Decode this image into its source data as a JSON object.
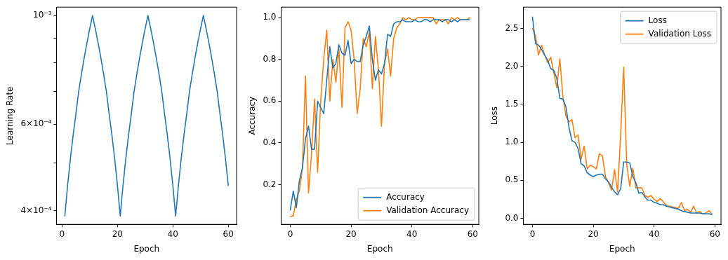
{
  "chart_data": [
    {
      "type": "line",
      "xlabel": "Epoch",
      "ylabel": "Learning Rate",
      "log": "y",
      "grid": false,
      "legend": false,
      "x": [
        1,
        2,
        3,
        4,
        5,
        6,
        7,
        8,
        9,
        10,
        11,
        12,
        13,
        14,
        15,
        16,
        17,
        18,
        19,
        20,
        21,
        22,
        23,
        24,
        25,
        26,
        27,
        28,
        29,
        30,
        31,
        32,
        33,
        34,
        35,
        36,
        37,
        38,
        39,
        40,
        41,
        42,
        43,
        44,
        45,
        46,
        47,
        48,
        49,
        50,
        51,
        52,
        53,
        54,
        55,
        56,
        57,
        58,
        59,
        60
      ],
      "series": [
        {
          "color": "#1f77b4",
          "values": [
            0.00039,
            0.00045,
            0.00051,
            0.00057,
            0.00063,
            0.0007,
            0.00076,
            0.00082,
            0.00088,
            0.00094,
            0.001,
            0.00094,
            0.00088,
            0.00082,
            0.00076,
            0.0007,
            0.00063,
            0.00057,
            0.00051,
            0.00045,
            0.00039,
            0.00045,
            0.00051,
            0.00057,
            0.00063,
            0.0007,
            0.00076,
            0.00082,
            0.00088,
            0.00094,
            0.001,
            0.00094,
            0.00088,
            0.00082,
            0.00076,
            0.0007,
            0.00063,
            0.00057,
            0.00051,
            0.00045,
            0.00039,
            0.00045,
            0.00051,
            0.00057,
            0.00063,
            0.0007,
            0.00076,
            0.00082,
            0.00088,
            0.00094,
            0.001,
            0.00094,
            0.00088,
            0.00082,
            0.00076,
            0.0007,
            0.00063,
            0.00057,
            0.00051,
            0.00045
          ]
        }
      ],
      "xlim": [
        -2,
        63
      ],
      "xticks": [
        0,
        20,
        40,
        60
      ],
      "ylim": [
        0.000375,
        0.00104
      ],
      "yticks": [
        {
          "value": 0.0004,
          "label": "4×10⁻⁴"
        },
        {
          "value": 0.0005,
          "label": null
        },
        {
          "value": 0.0006,
          "label": "6×10⁻⁴"
        },
        {
          "value": 0.0007,
          "label": null
        },
        {
          "value": 0.0008,
          "label": null
        },
        {
          "value": 0.0009,
          "label": null
        },
        {
          "value": 0.001,
          "label": "10⁻³"
        }
      ]
    },
    {
      "type": "line",
      "xlabel": "Epoch",
      "ylabel": "Accuracy",
      "grid": false,
      "legend": "bottom right",
      "x": [
        0,
        1,
        2,
        3,
        4,
        5,
        6,
        7,
        8,
        9,
        10,
        11,
        12,
        13,
        14,
        15,
        16,
        17,
        18,
        19,
        20,
        21,
        22,
        23,
        24,
        25,
        26,
        27,
        28,
        29,
        30,
        31,
        32,
        33,
        34,
        35,
        36,
        37,
        38,
        39,
        40,
        41,
        42,
        43,
        44,
        45,
        46,
        47,
        48,
        49,
        50,
        51,
        52,
        53,
        54,
        55,
        56,
        57,
        58,
        59
      ],
      "series": [
        {
          "name": "Accuracy",
          "color": "#1f77b4",
          "values": [
            0.08,
            0.17,
            0.09,
            0.22,
            0.28,
            0.42,
            0.48,
            0.37,
            0.37,
            0.6,
            0.57,
            0.54,
            0.7,
            0.86,
            0.76,
            0.78,
            0.87,
            0.83,
            0.82,
            0.89,
            0.78,
            0.8,
            0.79,
            0.79,
            0.87,
            0.91,
            0.96,
            0.8,
            0.7,
            0.75,
            0.73,
            0.78,
            0.92,
            0.91,
            0.97,
            0.98,
            0.98,
            0.99,
            0.98,
            0.98,
            0.98,
            0.99,
            0.98,
            0.98,
            0.99,
            0.99,
            0.98,
            0.99,
            0.99,
            0.99,
            0.98,
            0.99,
            0.99,
            0.98,
            0.99,
            0.98,
            0.99,
            0.99,
            0.99,
            0.99
          ]
        },
        {
          "name": "Validation Accuracy",
          "color": "#ff7f0e",
          "values": [
            0.05,
            0.05,
            0.13,
            0.17,
            0.28,
            0.72,
            0.16,
            0.35,
            0.61,
            0.26,
            0.6,
            0.8,
            0.94,
            0.6,
            0.8,
            0.69,
            0.85,
            0.57,
            0.95,
            0.98,
            0.94,
            0.8,
            0.54,
            0.66,
            0.9,
            0.86,
            0.93,
            0.66,
            0.91,
            0.75,
            0.48,
            0.78,
            0.85,
            0.72,
            0.9,
            0.95,
            0.97,
            1.0,
            0.99,
            1.0,
            0.99,
            0.99,
            1.0,
            1.0,
            1.0,
            1.0,
            1.0,
            1.0,
            0.97,
            0.99,
            0.99,
            0.99,
            0.97,
            1.0,
            0.99,
            1.0,
            0.99,
            0.99,
            0.99,
            1.0
          ]
        }
      ],
      "xlim": [
        -3,
        62
      ],
      "xticks": [
        0,
        20,
        40,
        60
      ],
      "ylim": [
        0.01,
        1.05
      ],
      "yticks": [
        0.2,
        0.4,
        0.6,
        0.8,
        {
          "value": 1,
          "label": "1.0"
        }
      ]
    },
    {
      "type": "line",
      "xlabel": "Epoch",
      "ylabel": "Loss",
      "grid": false,
      "legend": "top right",
      "x": [
        0,
        1,
        2,
        3,
        4,
        5,
        6,
        7,
        8,
        9,
        10,
        11,
        12,
        13,
        14,
        15,
        16,
        17,
        18,
        19,
        20,
        21,
        22,
        23,
        24,
        25,
        26,
        27,
        28,
        29,
        30,
        31,
        32,
        33,
        34,
        35,
        36,
        37,
        38,
        39,
        40,
        41,
        42,
        43,
        44,
        45,
        46,
        47,
        48,
        49,
        50,
        51,
        52,
        53,
        54,
        55,
        56,
        57,
        58,
        59
      ],
      "series": [
        {
          "name": "Loss",
          "color": "#1f77b4",
          "values": [
            2.65,
            2.3,
            2.28,
            2.22,
            2.15,
            2.08,
            1.97,
            1.95,
            1.84,
            1.58,
            1.57,
            1.47,
            1.2,
            1.02,
            1.0,
            0.92,
            0.72,
            0.69,
            0.6,
            0.57,
            0.55,
            0.57,
            0.58,
            0.58,
            0.52,
            0.48,
            0.41,
            0.35,
            0.31,
            0.39,
            0.74,
            0.74,
            0.73,
            0.55,
            0.47,
            0.33,
            0.34,
            0.28,
            0.24,
            0.24,
            0.21,
            0.2,
            0.18,
            0.18,
            0.16,
            0.15,
            0.14,
            0.13,
            0.12,
            0.1,
            0.09,
            0.08,
            0.07,
            0.07,
            0.07,
            0.07,
            0.06,
            0.06,
            0.06,
            0.05
          ]
        },
        {
          "name": "Validation Loss",
          "color": "#ff7f0e",
          "values": [
            2.5,
            2.4,
            2.15,
            2.28,
            2.15,
            2.05,
            2.12,
            1.92,
            1.72,
            2.1,
            1.6,
            1.35,
            1.27,
            1.3,
            1.06,
            1.1,
            0.78,
            0.95,
            0.65,
            0.7,
            0.68,
            0.65,
            0.85,
            0.82,
            0.55,
            0.47,
            0.37,
            0.64,
            0.35,
            1.1,
            1.99,
            0.71,
            0.42,
            0.66,
            0.4,
            0.4,
            0.4,
            0.3,
            0.28,
            0.3,
            0.25,
            0.22,
            0.26,
            0.22,
            0.17,
            0.16,
            0.15,
            0.14,
            0.13,
            0.21,
            0.1,
            0.12,
            0.08,
            0.16,
            0.07,
            0.09,
            0.06,
            0.07,
            0.1,
            0.06
          ]
        }
      ],
      "xlim": [
        -3,
        62
      ],
      "xticks": [
        0,
        20,
        40,
        60
      ],
      "ylim": [
        -0.08,
        2.78
      ],
      "yticks": [
        {
          "value": 0,
          "label": "0.0"
        },
        0.5,
        {
          "value": 1,
          "label": "1.0"
        },
        1.5,
        {
          "value": 2,
          "label": "2.0"
        },
        2.5
      ]
    }
  ]
}
